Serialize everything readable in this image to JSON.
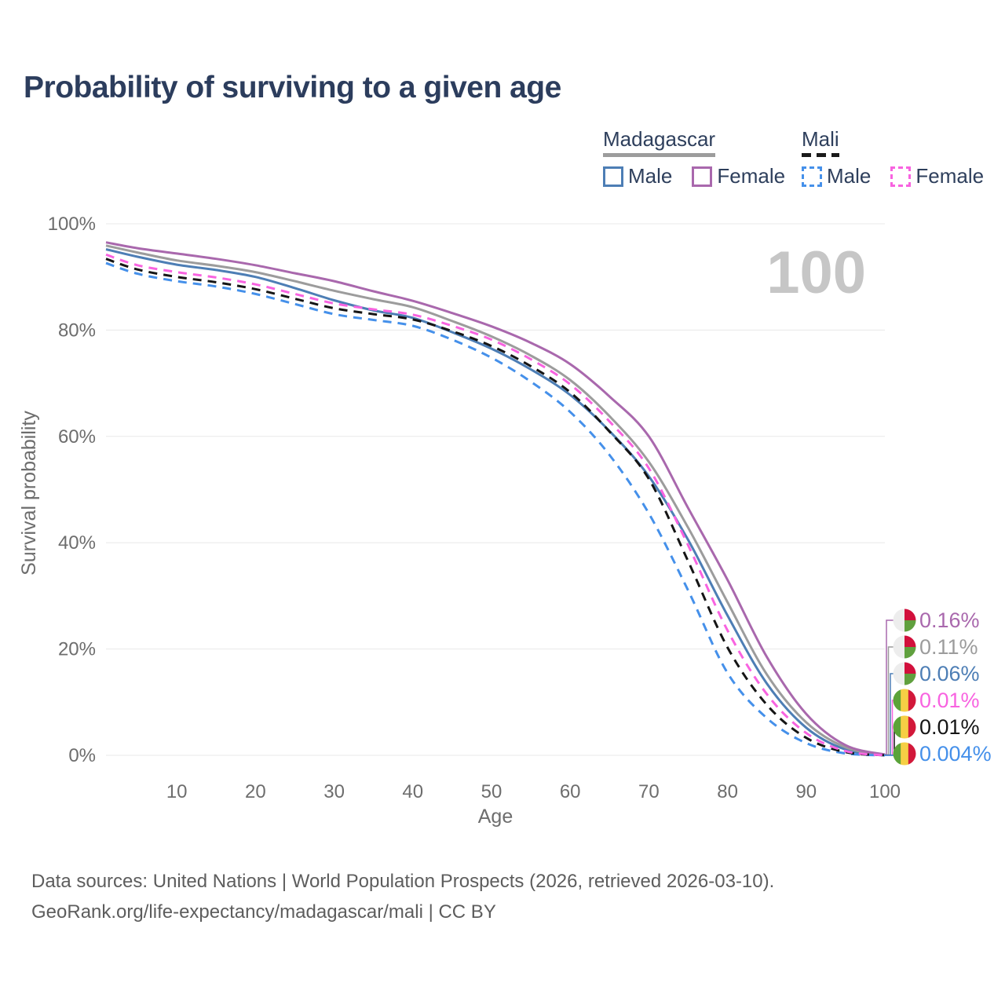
{
  "title": "Probability of surviving to a given age",
  "watermark_age_label": "100",
  "legend": {
    "groups": [
      {
        "name": "Madagascar",
        "line_style": "solid",
        "color": "#9c9c9c",
        "items": [
          {
            "label": "Male",
            "color": "#4d7eb5",
            "line_style": "solid"
          },
          {
            "label": "Female",
            "color": "#a968ad",
            "line_style": "solid"
          }
        ]
      },
      {
        "name": "Mali",
        "line_style": "dashed",
        "color": "#1a1a1a",
        "items": [
          {
            "label": "Male",
            "color": "#4590ea",
            "line_style": "dashed"
          },
          {
            "label": "Female",
            "color": "#f863e0",
            "line_style": "dashed"
          }
        ]
      }
    ]
  },
  "chart_data": {
    "type": "line",
    "title": "Probability of surviving to a given age",
    "xlabel": "Age",
    "ylabel": "Survival probability",
    "xlim": [
      1,
      100
    ],
    "ylim": [
      0,
      100
    ],
    "grid": true,
    "legend_position": "top-right",
    "x_ticks": [
      {
        "label": "10",
        "value": 10
      },
      {
        "label": "20",
        "value": 20
      },
      {
        "label": "30",
        "value": 30
      },
      {
        "label": "40",
        "value": 40
      },
      {
        "label": "50",
        "value": 50
      },
      {
        "label": "60",
        "value": 60
      },
      {
        "label": "70",
        "value": 70
      },
      {
        "label": "80",
        "value": 80
      },
      {
        "label": "90",
        "value": 90
      },
      {
        "label": "100",
        "value": 100
      }
    ],
    "y_ticks": [
      {
        "label": "0%",
        "value": 0
      },
      {
        "label": "20%",
        "value": 20
      },
      {
        "label": "40%",
        "value": 40
      },
      {
        "label": "60%",
        "value": 60
      },
      {
        "label": "80%",
        "value": 80
      },
      {
        "label": "100%",
        "value": 100
      }
    ],
    "x": [
      1,
      5,
      10,
      15,
      20,
      25,
      30,
      35,
      40,
      45,
      50,
      55,
      60,
      65,
      70,
      75,
      80,
      85,
      90,
      95,
      100
    ],
    "series": [
      {
        "name": "Madagascar Female",
        "country": "Madagascar",
        "sex": "Female",
        "color": "#a968ad",
        "line_style": "solid",
        "flag": "madagascar",
        "end_label": "0.16%",
        "values": [
          96.5,
          95.4,
          94.4,
          93.4,
          92.2,
          90.7,
          89.2,
          87.3,
          85.5,
          83.2,
          80.7,
          77.6,
          73.6,
          67.5,
          60.0,
          46.5,
          33.0,
          18.5,
          7.8,
          1.9,
          0.16
        ]
      },
      {
        "name": "Madagascar Both sexes",
        "country": "Madagascar",
        "sex": "Both",
        "color": "#9c9c9c",
        "line_style": "solid",
        "flag": "madagascar",
        "end_label": "0.11%",
        "values": [
          95.9,
          94.6,
          93.1,
          92.1,
          90.9,
          89.2,
          87.4,
          85.8,
          84.3,
          81.7,
          78.8,
          75.2,
          70.6,
          63.8,
          55.2,
          42.8,
          28.8,
          15.2,
          6.2,
          1.5,
          0.11
        ]
      },
      {
        "name": "Madagascar Male",
        "country": "Madagascar",
        "sex": "Male",
        "color": "#4d7eb5",
        "line_style": "solid",
        "flag": "madagascar",
        "end_label": "0.06%",
        "values": [
          95.2,
          93.8,
          92.3,
          91.3,
          90.0,
          87.9,
          85.6,
          83.7,
          82.3,
          79.6,
          76.5,
          72.6,
          67.8,
          61.0,
          52.5,
          40.5,
          26.3,
          13.5,
          5.2,
          1.1,
          0.06
        ]
      },
      {
        "name": "Mali Female",
        "country": "Mali",
        "sex": "Female",
        "color": "#f863e0",
        "line_style": "dashed",
        "flag": "mali",
        "end_label": "0.01%",
        "values": [
          94.2,
          92.2,
          90.9,
          89.9,
          88.6,
          86.8,
          85.0,
          83.9,
          82.9,
          80.8,
          78.2,
          74.5,
          69.8,
          62.8,
          54.0,
          39.5,
          23.5,
          11.5,
          4.2,
          0.8,
          0.01
        ]
      },
      {
        "name": "Mali Both sexes",
        "country": "Mali",
        "sex": "Both",
        "color": "#151515",
        "line_style": "dashed",
        "flag": "mali",
        "end_label": "0.01%",
        "values": [
          93.4,
          91.4,
          90.0,
          89.0,
          87.7,
          85.9,
          84.1,
          83.0,
          82.0,
          79.8,
          77.0,
          73.2,
          68.3,
          60.9,
          52.0,
          36.5,
          20.3,
          9.5,
          3.3,
          0.6,
          0.01
        ]
      },
      {
        "name": "Mali Male",
        "country": "Mali",
        "sex": "Male",
        "color": "#4590ea",
        "line_style": "dashed",
        "flag": "mali",
        "end_label": "0.004%",
        "values": [
          92.6,
          90.6,
          89.2,
          88.2,
          86.8,
          84.9,
          83.0,
          81.9,
          80.8,
          78.2,
          74.8,
          70.3,
          64.6,
          56.5,
          45.5,
          31.0,
          15.5,
          7.0,
          2.3,
          0.35,
          0.004
        ]
      }
    ]
  },
  "flags": {
    "madagascar": {
      "type": "madagascar",
      "white": "#ededed",
      "red": "#d2103c",
      "green": "#60a03e"
    },
    "mali": {
      "type": "mali",
      "green": "#5ba338",
      "yellow": "#f6cf45",
      "red": "#d2183a"
    }
  },
  "footer": {
    "line1": "Data sources: United Nations | World Population Prospects (2026, retrieved 2026-03-10).",
    "line2": "GeoRank.org/life-expectancy/madagascar/mali | CC BY"
  }
}
